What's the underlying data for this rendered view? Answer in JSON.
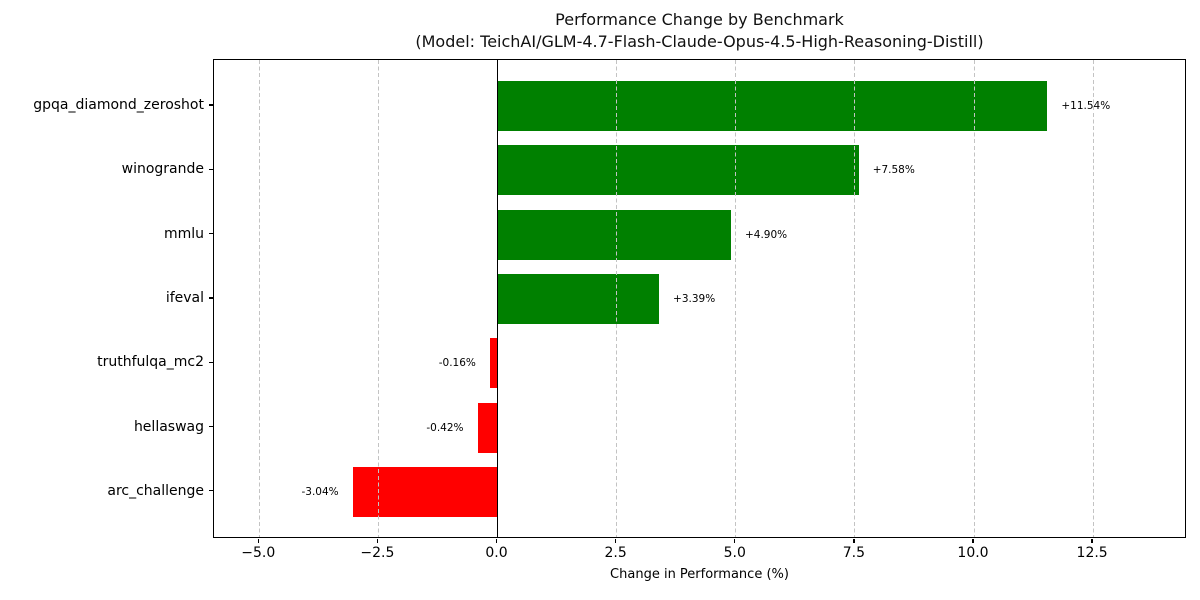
{
  "chart_data": {
    "type": "bar",
    "orientation": "horizontal",
    "title": "Performance Change by Benchmark",
    "subtitle": "(Model: TeichAI/GLM-4.7-Flash-Claude-Opus-4.5-High-Reasoning-Distill)",
    "xlabel": "Change in Performance (%)",
    "categories_top_to_bottom": [
      "gpqa_diamond_zeroshot",
      "winogrande",
      "mmlu",
      "ifeval",
      "truthfulqa_mc2",
      "hellaswag",
      "arc_challenge"
    ],
    "values": [
      11.54,
      7.58,
      4.9,
      3.39,
      -0.16,
      -0.42,
      -3.04
    ],
    "value_labels": [
      "+11.54%",
      "+7.58%",
      "+4.90%",
      "+3.39%",
      "-0.16%",
      "-0.42%",
      "-3.04%"
    ],
    "x_ticks": [
      -5.0,
      -2.5,
      0.0,
      2.5,
      5.0,
      7.5,
      10.0,
      12.5
    ],
    "x_tick_labels": [
      "−5.0",
      "−2.5",
      "0.0",
      "2.5",
      "5.0",
      "7.5",
      "10.0",
      "12.5"
    ],
    "xlim": [
      -5.95,
      14.47
    ],
    "ylim_note": "7 category rows, zero line solid black at x=0",
    "positive_color": "#008000",
    "negative_color": "#ff0000",
    "grid": "vertical dashed gridlines at each x tick except 0",
    "grid_color": "#c3c3c3",
    "axis_color": "#000000",
    "background_color": "#ffffff",
    "legend": "none"
  }
}
